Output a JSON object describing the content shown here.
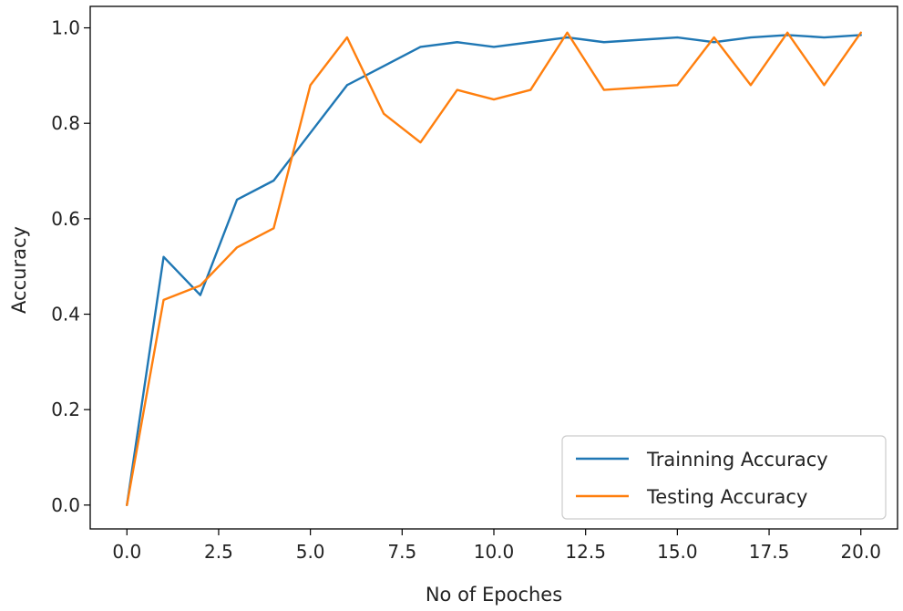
{
  "chart_data": {
    "type": "line",
    "title": "",
    "xlabel": "No of Epoches",
    "ylabel": "Accuracy",
    "xlim": [
      -1.0,
      21.0
    ],
    "ylim": [
      -0.05,
      1.045
    ],
    "xticks": [
      0.0,
      2.5,
      5.0,
      7.5,
      10.0,
      12.5,
      15.0,
      17.5,
      20.0
    ],
    "xtick_labels": [
      "0.0",
      "2.5",
      "5.0",
      "7.5",
      "10.0",
      "12.5",
      "15.0",
      "17.5",
      "20.0"
    ],
    "yticks": [
      0.0,
      0.2,
      0.4,
      0.6,
      0.8,
      1.0
    ],
    "ytick_labels": [
      "0.0",
      "0.2",
      "0.4",
      "0.6",
      "0.8",
      "1.0"
    ],
    "grid": false,
    "legend_position": "lower-right",
    "x": [
      0,
      1,
      2,
      3,
      4,
      5,
      6,
      7,
      8,
      9,
      10,
      11,
      12,
      13,
      14,
      15,
      16,
      17,
      18,
      19,
      20
    ],
    "series": [
      {
        "name": "Trainning Accuracy",
        "color": "#1f77b4",
        "values": [
          0.0,
          0.52,
          0.44,
          0.64,
          0.68,
          0.78,
          0.88,
          0.92,
          0.96,
          0.97,
          0.96,
          0.97,
          0.98,
          0.97,
          0.975,
          0.98,
          0.97,
          0.98,
          0.985,
          0.98,
          0.985
        ]
      },
      {
        "name": "Testing Accuracy",
        "color": "#ff7f0e",
        "values": [
          0.0,
          0.43,
          0.46,
          0.54,
          0.58,
          0.88,
          0.98,
          0.82,
          0.76,
          0.87,
          0.85,
          0.87,
          0.99,
          0.87,
          0.875,
          0.88,
          0.98,
          0.88,
          0.99,
          0.88,
          0.99
        ]
      }
    ]
  }
}
